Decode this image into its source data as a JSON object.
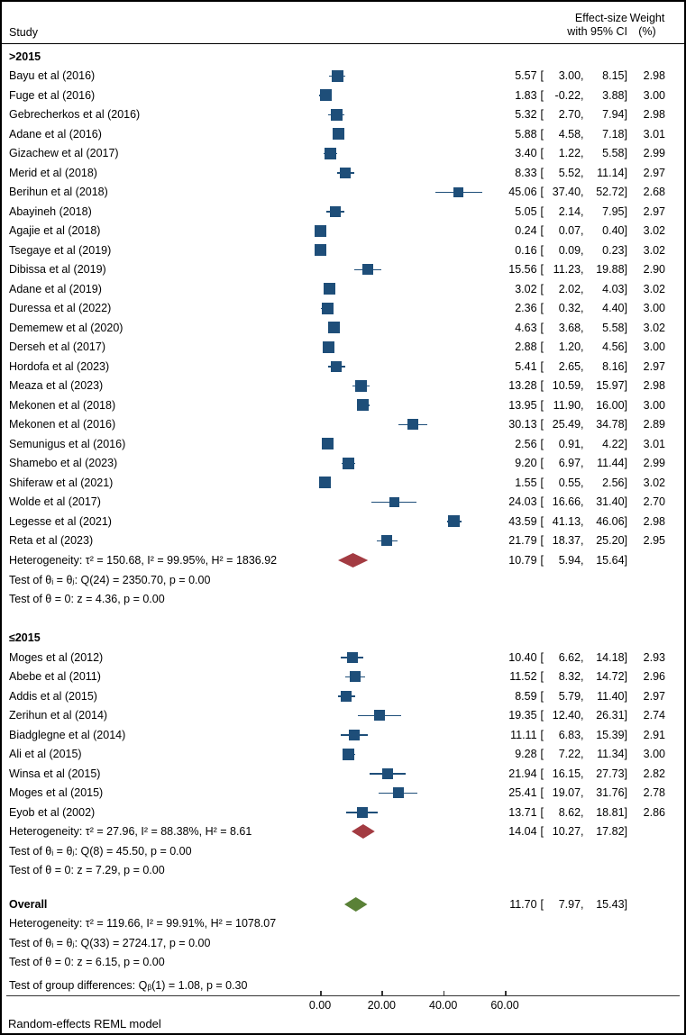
{
  "header": {
    "study": "Study",
    "effect_line1": "Effect-size",
    "effect_line2": "with 95% CI",
    "weight_line1": "Weight",
    "weight_line2": "(%)"
  },
  "footer": {
    "note": "Random-effects REML model"
  },
  "colors": {
    "marker_blue": "#1e4e79",
    "ci_blue": "#1e4e79",
    "subgroup_diamond_red": "#a33b42",
    "overall_diamond_green": "#5a8137",
    "rule": "#333333"
  },
  "chart_data": {
    "type": "forest",
    "x_axis": {
      "min": 0,
      "max": 60,
      "ticks": [
        {
          "value": 0,
          "label": "0.00"
        },
        {
          "value": 20,
          "label": "20.00"
        },
        {
          "value": 40,
          "label": "40.00"
        },
        {
          "value": 60,
          "label": "60.00"
        }
      ]
    },
    "groups": [
      {
        "label": ">2015",
        "studies": [
          {
            "name": "Bayu et al (2016)",
            "effect": 5.57,
            "lo": 3.0,
            "hi": 8.15,
            "weight": 2.98
          },
          {
            "name": "Fuge et al (2016)",
            "effect": 1.83,
            "lo": -0.22,
            "hi": 3.88,
            "weight": 3.0
          },
          {
            "name": "Gebrecherkos et al (2016)",
            "effect": 5.32,
            "lo": 2.7,
            "hi": 7.94,
            "weight": 2.98
          },
          {
            "name": "Adane et al (2016)",
            "effect": 5.88,
            "lo": 4.58,
            "hi": 7.18,
            "weight": 3.01
          },
          {
            "name": "Gizachew et al (2017)",
            "effect": 3.4,
            "lo": 1.22,
            "hi": 5.58,
            "weight": 2.99
          },
          {
            "name": "Merid et al (2018)",
            "effect": 8.33,
            "lo": 5.52,
            "hi": 11.14,
            "weight": 2.97
          },
          {
            "name": "Berihun et al (2018)",
            "effect": 45.06,
            "lo": 37.4,
            "hi": 52.72,
            "weight": 2.68
          },
          {
            "name": "Abayineh (2018)",
            "effect": 5.05,
            "lo": 2.14,
            "hi": 7.95,
            "weight": 2.97
          },
          {
            "name": "Agajie et al (2018)",
            "effect": 0.24,
            "lo": 0.07,
            "hi": 0.4,
            "weight": 3.02
          },
          {
            "name": "Tsegaye et al (2019)",
            "effect": 0.16,
            "lo": 0.09,
            "hi": 0.23,
            "weight": 3.02
          },
          {
            "name": "Dibissa et al (2019)",
            "effect": 15.56,
            "lo": 11.23,
            "hi": 19.88,
            "weight": 2.9
          },
          {
            "name": "Adane et al (2019)",
            "effect": 3.02,
            "lo": 2.02,
            "hi": 4.03,
            "weight": 3.02
          },
          {
            "name": "Duressa et al (2022)",
            "effect": 2.36,
            "lo": 0.32,
            "hi": 4.4,
            "weight": 3.0
          },
          {
            "name": "Dememew et al (2020)",
            "effect": 4.63,
            "lo": 3.68,
            "hi": 5.58,
            "weight": 3.02
          },
          {
            "name": "Derseh et al (2017)",
            "effect": 2.88,
            "lo": 1.2,
            "hi": 4.56,
            "weight": 3.0
          },
          {
            "name": "Hordofa et al (2023)",
            "effect": 5.41,
            "lo": 2.65,
            "hi": 8.16,
            "weight": 2.97
          },
          {
            "name": "Meaza et al (2023)",
            "effect": 13.28,
            "lo": 10.59,
            "hi": 15.97,
            "weight": 2.98
          },
          {
            "name": "Mekonen et al (2018)",
            "effect": 13.95,
            "lo": 11.9,
            "hi": 16.0,
            "weight": 3.0
          },
          {
            "name": "Mekonen et al (2016)",
            "effect": 30.13,
            "lo": 25.49,
            "hi": 34.78,
            "weight": 2.89
          },
          {
            "name": "Semunigus et al (2016)",
            "effect": 2.56,
            "lo": 0.91,
            "hi": 4.22,
            "weight": 3.01
          },
          {
            "name": "Shamebo et al (2023)",
            "effect": 9.2,
            "lo": 6.97,
            "hi": 11.44,
            "weight": 2.99
          },
          {
            "name": "Shiferaw et al (2021)",
            "effect": 1.55,
            "lo": 0.55,
            "hi": 2.56,
            "weight": 3.02
          },
          {
            "name": "Wolde et al (2017)",
            "effect": 24.03,
            "lo": 16.66,
            "hi": 31.4,
            "weight": 2.7
          },
          {
            "name": "Legesse et al (2021)",
            "effect": 43.59,
            "lo": 41.13,
            "hi": 46.06,
            "weight": 2.98
          },
          {
            "name": "Reta et al (2023)",
            "effect": 21.79,
            "lo": 18.37,
            "hi": 25.2,
            "weight": 2.95
          }
        ],
        "summary": {
          "label": "Heterogeneity: τ² = 150.68, I² = 99.95%, H² = 1836.92",
          "effect": 10.79,
          "lo": 5.94,
          "hi": 15.64
        },
        "tests": [
          "Test of θᵢ = θⱼ: Q(24) = 2350.70, p = 0.00",
          "Test of θ = 0: z = 4.36, p = 0.00"
        ]
      },
      {
        "label": "≤2015",
        "studies": [
          {
            "name": "Moges et al (2012)",
            "effect": 10.4,
            "lo": 6.62,
            "hi": 14.18,
            "weight": 2.93
          },
          {
            "name": "Abebe et al (2011)",
            "effect": 11.52,
            "lo": 8.32,
            "hi": 14.72,
            "weight": 2.96
          },
          {
            "name": "Addis et al (2015)",
            "effect": 8.59,
            "lo": 5.79,
            "hi": 11.4,
            "weight": 2.97
          },
          {
            "name": "Zerihun et al (2014)",
            "effect": 19.35,
            "lo": 12.4,
            "hi": 26.31,
            "weight": 2.74
          },
          {
            "name": "Biadglegne et al (2014)",
            "effect": 11.11,
            "lo": 6.83,
            "hi": 15.39,
            "weight": 2.91
          },
          {
            "name": "Ali et al (2015)",
            "effect": 9.28,
            "lo": 7.22,
            "hi": 11.34,
            "weight": 3.0
          },
          {
            "name": "Winsa et al (2015)",
            "effect": 21.94,
            "lo": 16.15,
            "hi": 27.73,
            "weight": 2.82
          },
          {
            "name": "Moges et al (2015)",
            "effect": 25.41,
            "lo": 19.07,
            "hi": 31.76,
            "weight": 2.78
          },
          {
            "name": "Eyob et al (2002)",
            "effect": 13.71,
            "lo": 8.62,
            "hi": 18.81,
            "weight": 2.86
          }
        ],
        "summary": {
          "label": "Heterogeneity: τ² = 27.96, I² = 88.38%, H² = 8.61",
          "effect": 14.04,
          "lo": 10.27,
          "hi": 17.82
        },
        "tests": [
          "Test of θᵢ = θⱼ: Q(8) = 45.50, p = 0.00",
          "Test of θ = 0: z = 7.29, p = 0.00"
        ]
      }
    ],
    "overall": {
      "label": "Overall",
      "effect": 11.7,
      "lo": 7.97,
      "hi": 15.43,
      "heterogeneity": "Heterogeneity: τ² = 119.66, I² = 99.91%, H² = 1078.07",
      "tests": [
        "Test of θᵢ = θⱼ: Q(33) = 2724.17, p = 0.00",
        "Test of θ = 0: z = 6.15, p = 0.00"
      ]
    },
    "group_difference": "Test of group differences: Qᵦ(1) = 1.08, p = 0.30"
  }
}
